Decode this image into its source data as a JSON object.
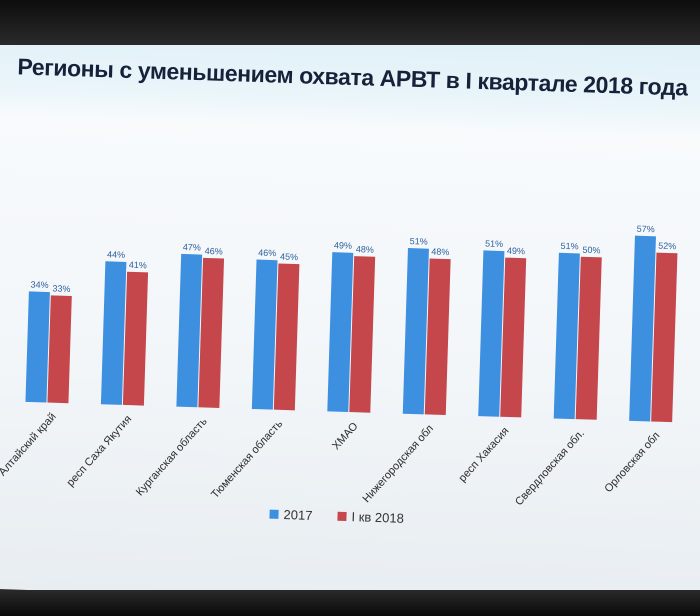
{
  "chart_data": {
    "type": "bar",
    "title": "Регионы с уменьшением охвата АРВТ в I квартале 2018 года",
    "categories": [
      "Алтайский край",
      "респ Саха Якутия",
      "Курганская область",
      "Тюменская область",
      "ХМАО",
      "Нижегородская обл",
      "респ Хакасия",
      "Свердловская обл.",
      "Орловская обл"
    ],
    "series": [
      {
        "name": "2017",
        "color": "#3d8fe0",
        "values": [
          34,
          44,
          47,
          46,
          49,
          51,
          51,
          51,
          57
        ],
        "labels": [
          "34%",
          "44%",
          "47%",
          "46%",
          "49%",
          "51%",
          "51%",
          "51%",
          "57%"
        ]
      },
      {
        "name": "I кв 2018",
        "color": "#c5474b",
        "values": [
          33,
          41,
          46,
          45,
          48,
          48,
          49,
          50,
          52
        ],
        "labels": [
          "33%",
          "41%",
          "46%",
          "45%",
          "48%",
          "48%",
          "49%",
          "50%",
          "52%"
        ]
      }
    ],
    "ylim": [
      0,
      60
    ],
    "grid": false,
    "legend_position": "bottom"
  }
}
